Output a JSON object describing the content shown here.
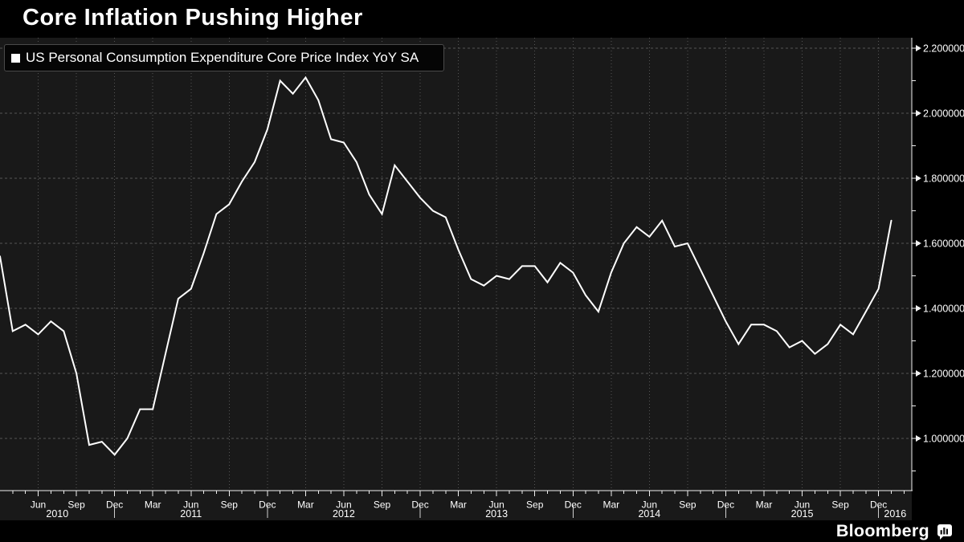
{
  "title": "Core Inflation Pushing Higher",
  "legend": {
    "label": "US Personal Consumption Expenditure Core Price Index YoY SA",
    "swatch_color": "#ffffff"
  },
  "branding": {
    "wordmark": "Bloomberg",
    "icon": "bloomberg-chart-bubble-icon"
  },
  "colors": {
    "page_bg": "#191919",
    "panel_bg": "#000000",
    "line": "#ffffff",
    "grid": "#555555",
    "axis": "#f0f0f0",
    "text": "#ffffff"
  },
  "chart_data": {
    "type": "line",
    "title": "Core Inflation Pushing Higher",
    "legend_position": "top-left",
    "grid": "dotted",
    "y_axis_side": "right",
    "ylim": [
      0.84,
      2.23
    ],
    "y_ticks": [
      1.0,
      1.2,
      1.4,
      1.6,
      1.8,
      2.0,
      2.2
    ],
    "y_tick_labels": [
      "1.000000",
      "1.200000",
      "1.400000",
      "1.600000",
      "1.800000",
      "2.000000",
      "2.200000"
    ],
    "y_minor_ticks": [
      0.9,
      1.1,
      1.3,
      1.5,
      1.7,
      1.9,
      2.1
    ],
    "x_tick_labels": [
      "Jun",
      "Sep",
      "Dec",
      "Mar",
      "Jun",
      "Sep",
      "Dec",
      "Mar",
      "Jun",
      "Sep",
      "Dec",
      "Mar",
      "Jun",
      "Sep",
      "Dec",
      "Mar",
      "Jun",
      "Sep",
      "Dec",
      "Mar",
      "Jun",
      "Sep",
      "Dec"
    ],
    "year_labels": [
      "2010",
      "2011",
      "2012",
      "2013",
      "2014",
      "2015",
      "2016"
    ],
    "series": [
      {
        "name": "US Personal Consumption Expenditure Core Price Index YoY SA",
        "color": "#ffffff",
        "start_month": "2010-03",
        "frequency": "monthly",
        "values": [
          1.56,
          1.33,
          1.35,
          1.32,
          1.36,
          1.33,
          1.2,
          0.98,
          0.99,
          0.95,
          1.0,
          1.09,
          1.09,
          1.26,
          1.43,
          1.46,
          1.57,
          1.69,
          1.72,
          1.79,
          1.85,
          1.95,
          2.1,
          2.06,
          2.11,
          2.04,
          1.92,
          1.91,
          1.85,
          1.75,
          1.69,
          1.84,
          1.79,
          1.74,
          1.7,
          1.68,
          1.58,
          1.49,
          1.47,
          1.5,
          1.49,
          1.53,
          1.53,
          1.48,
          1.54,
          1.51,
          1.44,
          1.39,
          1.51,
          1.6,
          1.65,
          1.62,
          1.67,
          1.59,
          1.6,
          1.52,
          1.44,
          1.36,
          1.29,
          1.35,
          1.35,
          1.33,
          1.28,
          1.3,
          1.26,
          1.29,
          1.35,
          1.32,
          1.39,
          1.46,
          1.67
        ]
      }
    ]
  }
}
